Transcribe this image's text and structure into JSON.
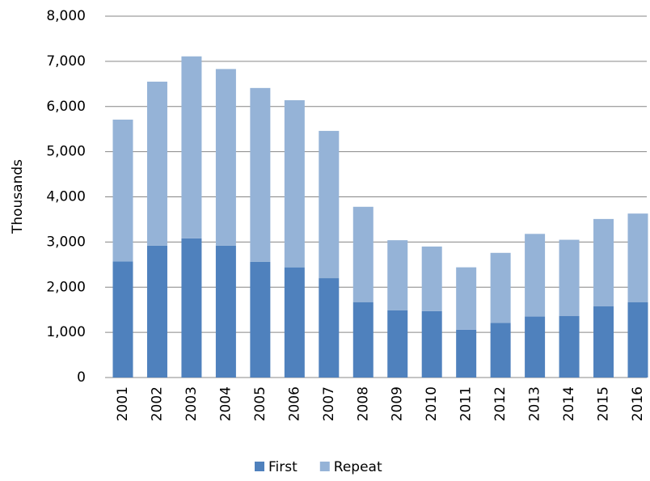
{
  "chart_data": {
    "type": "stacked-bar",
    "categories": [
      "2001",
      "2002",
      "2003",
      "2004",
      "2005",
      "2006",
      "2007",
      "2008",
      "2009",
      "2010",
      "2011",
      "2012",
      "2013",
      "2014",
      "2015",
      "2016"
    ],
    "series": [
      {
        "name": "First",
        "color": "#4f81bd",
        "values": [
          2570,
          2920,
          3080,
          2920,
          2560,
          2440,
          2200,
          1670,
          1490,
          1470,
          1060,
          1210,
          1350,
          1360,
          1580,
          1670
        ]
      },
      {
        "name": "Repeat",
        "color": "#95b3d7",
        "values": [
          3140,
          3630,
          4030,
          3910,
          3850,
          3700,
          3260,
          2110,
          1550,
          1430,
          1380,
          1550,
          1830,
          1690,
          1930,
          1960
        ]
      }
    ],
    "ylabel": "Thousands",
    "ylim": [
      0,
      8000
    ],
    "yticks": [
      0,
      {
        "value": 1000,
        "label": "1,000"
      },
      {
        "value": 2000,
        "label": "2,000"
      },
      {
        "value": 3000,
        "label": "3,000"
      },
      {
        "value": 4000,
        "label": "4,000"
      },
      {
        "value": 5000,
        "label": "5,000"
      },
      {
        "value": 6000,
        "label": "6,000"
      },
      {
        "value": 7000,
        "label": "7,000"
      },
      {
        "value": 8000,
        "label": "8,000"
      }
    ],
    "grid": true,
    "legend": "bottom"
  }
}
